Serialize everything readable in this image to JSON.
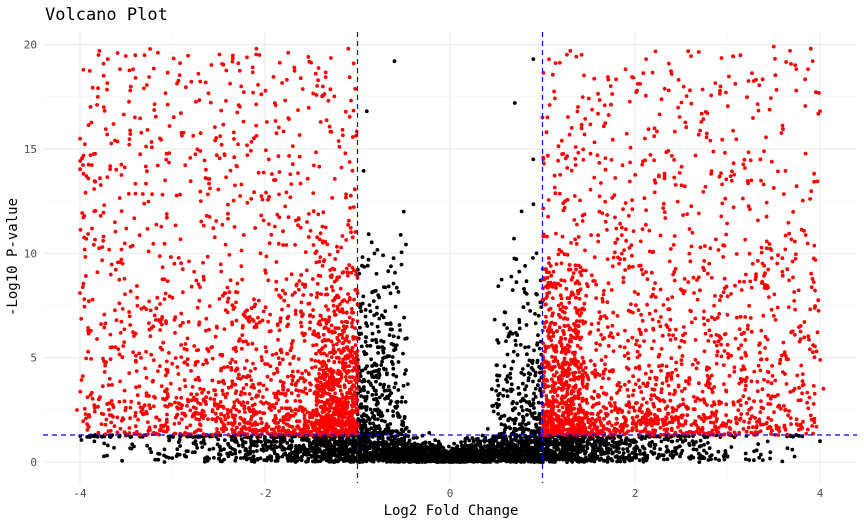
{
  "chart_data": {
    "type": "scatter",
    "title": "Volcano Plot",
    "xlabel": "Log2 Fold Change",
    "ylabel": "-Log10 P-value",
    "xlim": [
      -4.4,
      4.4
    ],
    "ylim": [
      -1.0,
      20.6
    ],
    "x_ticks": [
      -4,
      -2,
      0,
      2,
      4
    ],
    "y_ticks": [
      0,
      5,
      10,
      15,
      20
    ],
    "x_tick_labels": [
      "-4",
      "-2",
      "0",
      "2",
      "4"
    ],
    "y_tick_labels": [
      "0",
      "5",
      "10",
      "15",
      "20"
    ],
    "grid": true,
    "thresholds": {
      "log2fc": [
        -1,
        1
      ],
      "neg_log10_p": 1.3
    },
    "colors": {
      "significant": "#ff0000",
      "not_significant": "#000000",
      "threshold_line": "#0000ff",
      "grid_major": "#ebebeb",
      "grid_minor": "#f5f5f5"
    },
    "point_groups": [
      {
        "group": "significant",
        "color": "#ff0000"
      },
      {
        "group": "not_significant",
        "color": "#000000"
      }
    ],
    "sample_points": {
      "significant": [
        [
          -3.8,
          19.5
        ],
        [
          -3.7,
          19.3
        ],
        [
          -3.4,
          18.4
        ],
        [
          -4.0,
          8.1
        ],
        [
          -1.1,
          19.8
        ],
        [
          1.0,
          16.5
        ],
        [
          1.3,
          19.7
        ],
        [
          3.5,
          19.9
        ],
        [
          3.9,
          19.8
        ],
        [
          4.0,
          16.8
        ],
        [
          -2.5,
          1.4
        ],
        [
          2.8,
          1.4
        ]
      ],
      "not_significant": [
        [
          -0.6,
          19.2
        ],
        [
          -0.9,
          16.8
        ],
        [
          -0.5,
          12.0
        ],
        [
          0.7,
          17.2
        ],
        [
          0.9,
          19.3
        ],
        [
          0.9,
          14.5
        ],
        [
          -0.1,
          0.2
        ],
        [
          0.0,
          0.0
        ],
        [
          3.7,
          0.6
        ],
        [
          -3.7,
          0.8
        ],
        [
          4.0,
          1.0
        ]
      ]
    }
  }
}
